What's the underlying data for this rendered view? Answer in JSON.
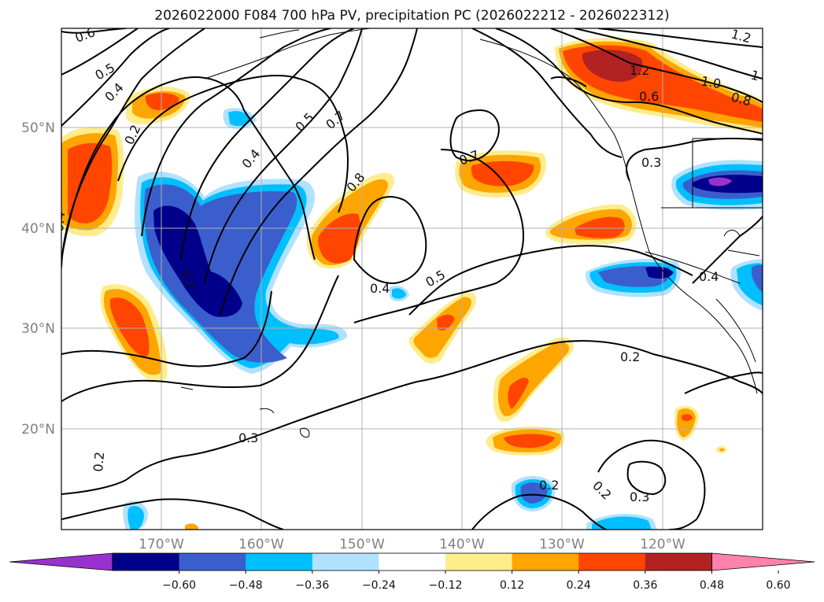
{
  "title": "2026022000 F084 700 hPa PV, precipitation PC (2026022212 - 2026022312)",
  "map": {
    "lon_range": [
      -180,
      -110
    ],
    "lat_range": [
      10,
      60
    ],
    "lat_labels": [
      "20°N",
      "30°N",
      "40°N",
      "50°N"
    ],
    "lon_labels": [
      "170°W",
      "160°W",
      "150°W",
      "140°W",
      "130°W",
      "120°W"
    ],
    "grid": true
  },
  "contour_labels": [
    "0.6",
    "0.5",
    "0.4",
    "0.2",
    "0.4",
    "0.2",
    "0.4",
    "0.5",
    "0.7",
    "0.8",
    "0.4",
    "0.5",
    "0.7",
    "1.2",
    "1.0",
    "0.6",
    "0.8",
    "1",
    "1.2",
    "0.3",
    "0.4",
    "0.2",
    "0.3",
    "0.2",
    "0.3",
    "0.2",
    "0.2"
  ],
  "colorbar": {
    "ticks": [
      "−0.60",
      "−0.48",
      "−0.36",
      "−0.24",
      "−0.12",
      "0.12",
      "0.24",
      "0.36",
      "0.48",
      "0.60"
    ],
    "colors": [
      "#9932cc",
      "#00008b",
      "#3a5fcd",
      "#00bfff",
      "#b0e2ff",
      "#ffffff",
      "#ffec8b",
      "#ffa500",
      "#ff4500",
      "#b22222",
      "#ff82ab"
    ]
  }
}
